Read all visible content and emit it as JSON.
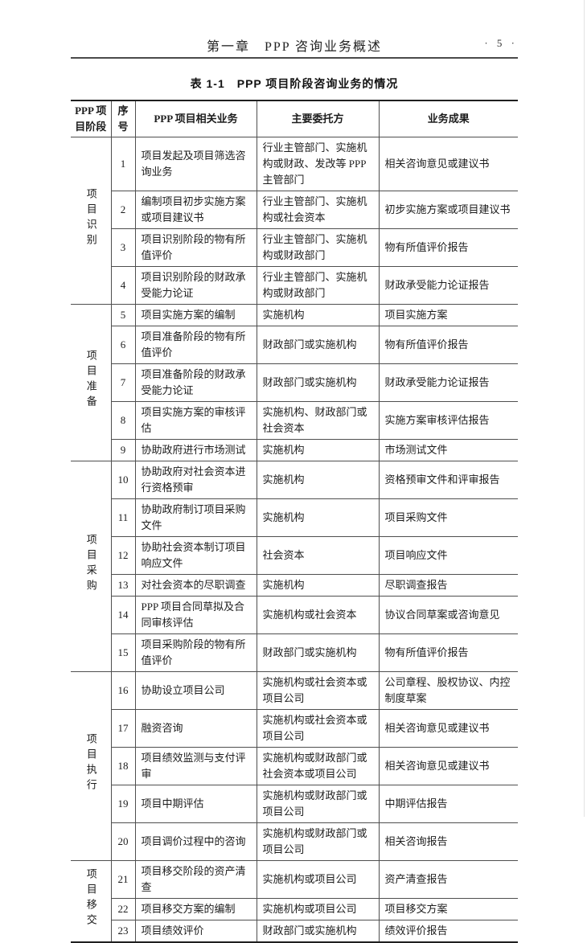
{
  "page": {
    "chapter_title": "第一章　PPP 咨询业务概述",
    "page_number": "· 5 ·"
  },
  "table": {
    "caption": "表 1-1　PPP 项目阶段咨询业务的情况",
    "headers": {
      "stage": "PPP 项目阶段",
      "no": "序号",
      "business": "PPP 项目相关业务",
      "client": "主要委托方",
      "result": "业务成果"
    },
    "groups": [
      {
        "stage": "项目识别",
        "rows": [
          {
            "no": "1",
            "business": "项目发起及项目筛选咨询业务",
            "client": "行业主管部门、实施机构或财政、发改等 PPP 主管部门",
            "result": "相关咨询意见或建议书"
          },
          {
            "no": "2",
            "business": "编制项目初步实施方案或项目建议书",
            "client": "行业主管部门、实施机构或社会资本",
            "result": "初步实施方案或项目建议书"
          },
          {
            "no": "3",
            "business": "项目识别阶段的物有所值评价",
            "client": "行业主管部门、实施机构或财政部门",
            "result": "物有所值评价报告"
          },
          {
            "no": "4",
            "business": "项目识别阶段的财政承受能力论证",
            "client": "行业主管部门、实施机构或财政部门",
            "result": "财政承受能力论证报告"
          }
        ]
      },
      {
        "stage": "项目准备",
        "rows": [
          {
            "no": "5",
            "business": "项目实施方案的编制",
            "client": "实施机构",
            "result": "项目实施方案"
          },
          {
            "no": "6",
            "business": "项目准备阶段的物有所值评价",
            "client": "财政部门或实施机构",
            "result": "物有所值评价报告"
          },
          {
            "no": "7",
            "business": "项目准备阶段的财政承受能力论证",
            "client": "财政部门或实施机构",
            "result": "财政承受能力论证报告"
          },
          {
            "no": "8",
            "business": "项目实施方案的审核评估",
            "client": "实施机构、财政部门或社会资本",
            "result": "实施方案审核评估报告"
          },
          {
            "no": "9",
            "business": "协助政府进行市场测试",
            "client": "实施机构",
            "result": "市场测试文件"
          }
        ]
      },
      {
        "stage": "项目采购",
        "rows": [
          {
            "no": "10",
            "business": "协助政府对社会资本进行资格预审",
            "client": "实施机构",
            "result": "资格预审文件和评审报告"
          },
          {
            "no": "11",
            "business": "协助政府制订项目采购文件",
            "client": "实施机构",
            "result": "项目采购文件"
          },
          {
            "no": "12",
            "business": "协助社会资本制订项目响应文件",
            "client": "社会资本",
            "result": "项目响应文件"
          },
          {
            "no": "13",
            "business": "对社会资本的尽职调查",
            "client": "实施机构",
            "result": "尽职调查报告"
          },
          {
            "no": "14",
            "business": "PPP 项目合同草拟及合同审核评估",
            "client": "实施机构或社会资本",
            "result": "协议合同草案或咨询意见"
          },
          {
            "no": "15",
            "business": "项目采购阶段的物有所值评价",
            "client": "财政部门或实施机构",
            "result": "物有所值评价报告"
          }
        ]
      },
      {
        "stage": "项目执行",
        "rows": [
          {
            "no": "16",
            "business": "协助设立项目公司",
            "client": "实施机构或社会资本或项目公司",
            "result": "公司章程、股权协议、内控制度草案"
          },
          {
            "no": "17",
            "business": "融资咨询",
            "client": "实施机构或社会资本或项目公司",
            "result": "相关咨询意见或建议书"
          },
          {
            "no": "18",
            "business": "项目绩效监测与支付评审",
            "client": "实施机构或财政部门或社会资本或项目公司",
            "result": "相关咨询意见或建议书"
          },
          {
            "no": "19",
            "business": "项目中期评估",
            "client": "实施机构或财政部门或项目公司",
            "result": "中期评估报告"
          },
          {
            "no": "20",
            "business": "项目调价过程中的咨询",
            "client": "实施机构或财政部门或项目公司",
            "result": "相关咨询报告"
          }
        ]
      },
      {
        "stage": "项目移交",
        "rows": [
          {
            "no": "21",
            "business": "项目移交阶段的资产清查",
            "client": "实施机构或项目公司",
            "result": "资产清查报告"
          },
          {
            "no": "22",
            "business": "项目移交方案的编制",
            "client": "实施机构或项目公司",
            "result": "项目移交方案"
          },
          {
            "no": "23",
            "business": "项目绩效评价",
            "client": "财政部门或实施机构",
            "result": "绩效评价报告"
          }
        ]
      }
    ]
  }
}
